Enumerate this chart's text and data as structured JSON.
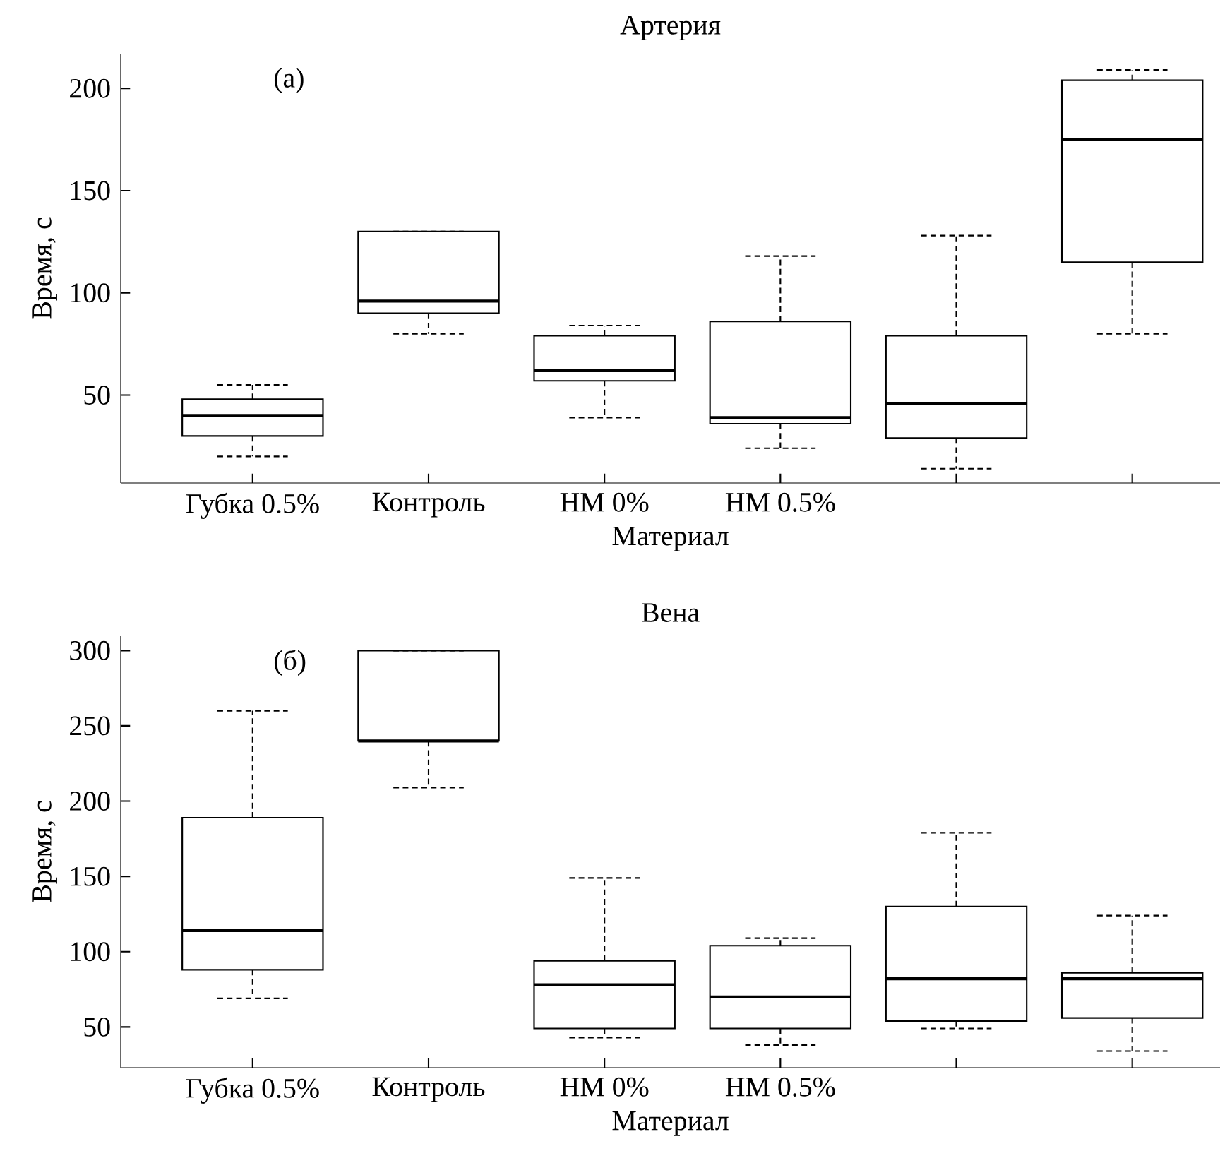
{
  "chart_data": [
    {
      "type": "box",
      "title": "Артерия",
      "xlabel": "Материал",
      "ylabel": "Время, с",
      "annotations": [
        "(а)"
      ],
      "categories": [
        "Губка 0.5%",
        "Контроль",
        "НМ 0%",
        "НМ 0.5%",
        null,
        null
      ],
      "boxes": [
        {
          "low": 20,
          "q1": 30,
          "median": 40,
          "q3": 48,
          "high": 55
        },
        {
          "low": 80,
          "q1": 90,
          "median": 96,
          "q3": 130,
          "high": 130
        },
        {
          "low": 39,
          "q1": 57,
          "median": 62,
          "q3": 79,
          "high": 84
        },
        {
          "low": 24,
          "q1": 36,
          "median": 39,
          "q3": 86,
          "high": 118
        },
        {
          "low": 14,
          "q1": 29,
          "median": 46,
          "q3": 79,
          "high": 128
        },
        {
          "low": 80,
          "q1": 115,
          "median": 175,
          "q3": 204,
          "high": 209
        }
      ],
      "ylim": [
        7,
        217
      ],
      "yticks": [
        50,
        100,
        150,
        200
      ]
    },
    {
      "type": "box",
      "title": "Вена",
      "xlabel": "Материал",
      "ylabel": "Время, с",
      "annotations": [
        "(б)"
      ],
      "categories": [
        "Губка 0.5%",
        "Контроль",
        "НМ 0%",
        "НМ 0.5%",
        null,
        null
      ],
      "boxes": [
        {
          "low": 69,
          "q1": 88,
          "median": 114,
          "q3": 189,
          "high": 260
        },
        {
          "low": 209,
          "q1": 240,
          "median": 240,
          "q3": 300,
          "high": 300
        },
        {
          "low": 43,
          "q1": 49,
          "median": 78,
          "q3": 94,
          "high": 149
        },
        {
          "low": 38,
          "q1": 49,
          "median": 70,
          "q3": 104,
          "high": 109
        },
        {
          "low": 49,
          "q1": 54,
          "median": 82,
          "q3": 130,
          "high": 179
        },
        {
          "low": 34,
          "q1": 56,
          "median": 82,
          "q3": 86,
          "high": 124
        }
      ],
      "ylim": [
        23,
        310
      ],
      "yticks": [
        50,
        100,
        150,
        200,
        250,
        300
      ]
    }
  ]
}
